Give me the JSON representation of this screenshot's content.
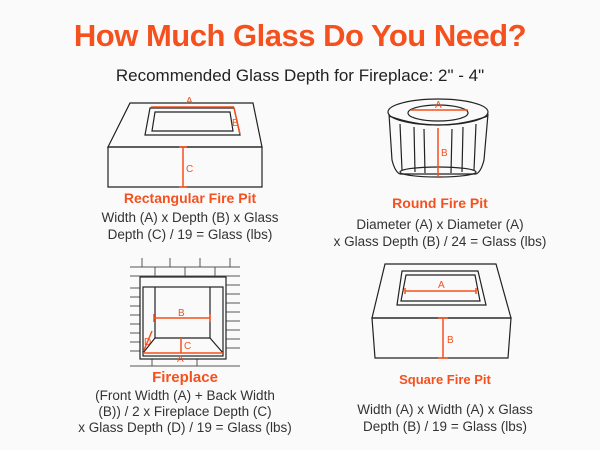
{
  "header": {
    "title": "How Much Glass Do You Need?",
    "subtitle": "Recommended Glass Depth for Fireplace: 2\" - 4\""
  },
  "accent_color": "#f4511e",
  "panels": {
    "rectangular": {
      "title": "Rectangular Fire Pit",
      "formula_lines": [
        "Width (A) x Depth (B) x Glass",
        "Depth (C) / 19 = Glass (lbs)"
      ],
      "markers": {
        "a": "A",
        "b": "B",
        "c": "C"
      }
    },
    "round": {
      "title": "Round Fire Pit",
      "formula_lines": [
        "Diameter (A) x Diameter (A)",
        "x Glass Depth (B) / 24 = Glass (lbs)"
      ],
      "markers": {
        "a": "A",
        "b": "B"
      }
    },
    "fireplace": {
      "title": "Fireplace",
      "formula_lines": [
        "(Front Width (A) + Back Width",
        "(B)) / 2 x Fireplace Depth (C)",
        "x Glass Depth (D) / 19 = Glass (lbs)"
      ],
      "markers": {
        "a": "A",
        "b": "B",
        "c": "C",
        "d": "D"
      }
    },
    "square": {
      "title": "Square Fire Pit",
      "formula_lines": [
        "Width (A) x Width (A) x Glass",
        "Depth (B) / 19 = Glass (lbs)"
      ],
      "markers": {
        "a": "A",
        "b": "B"
      }
    }
  }
}
